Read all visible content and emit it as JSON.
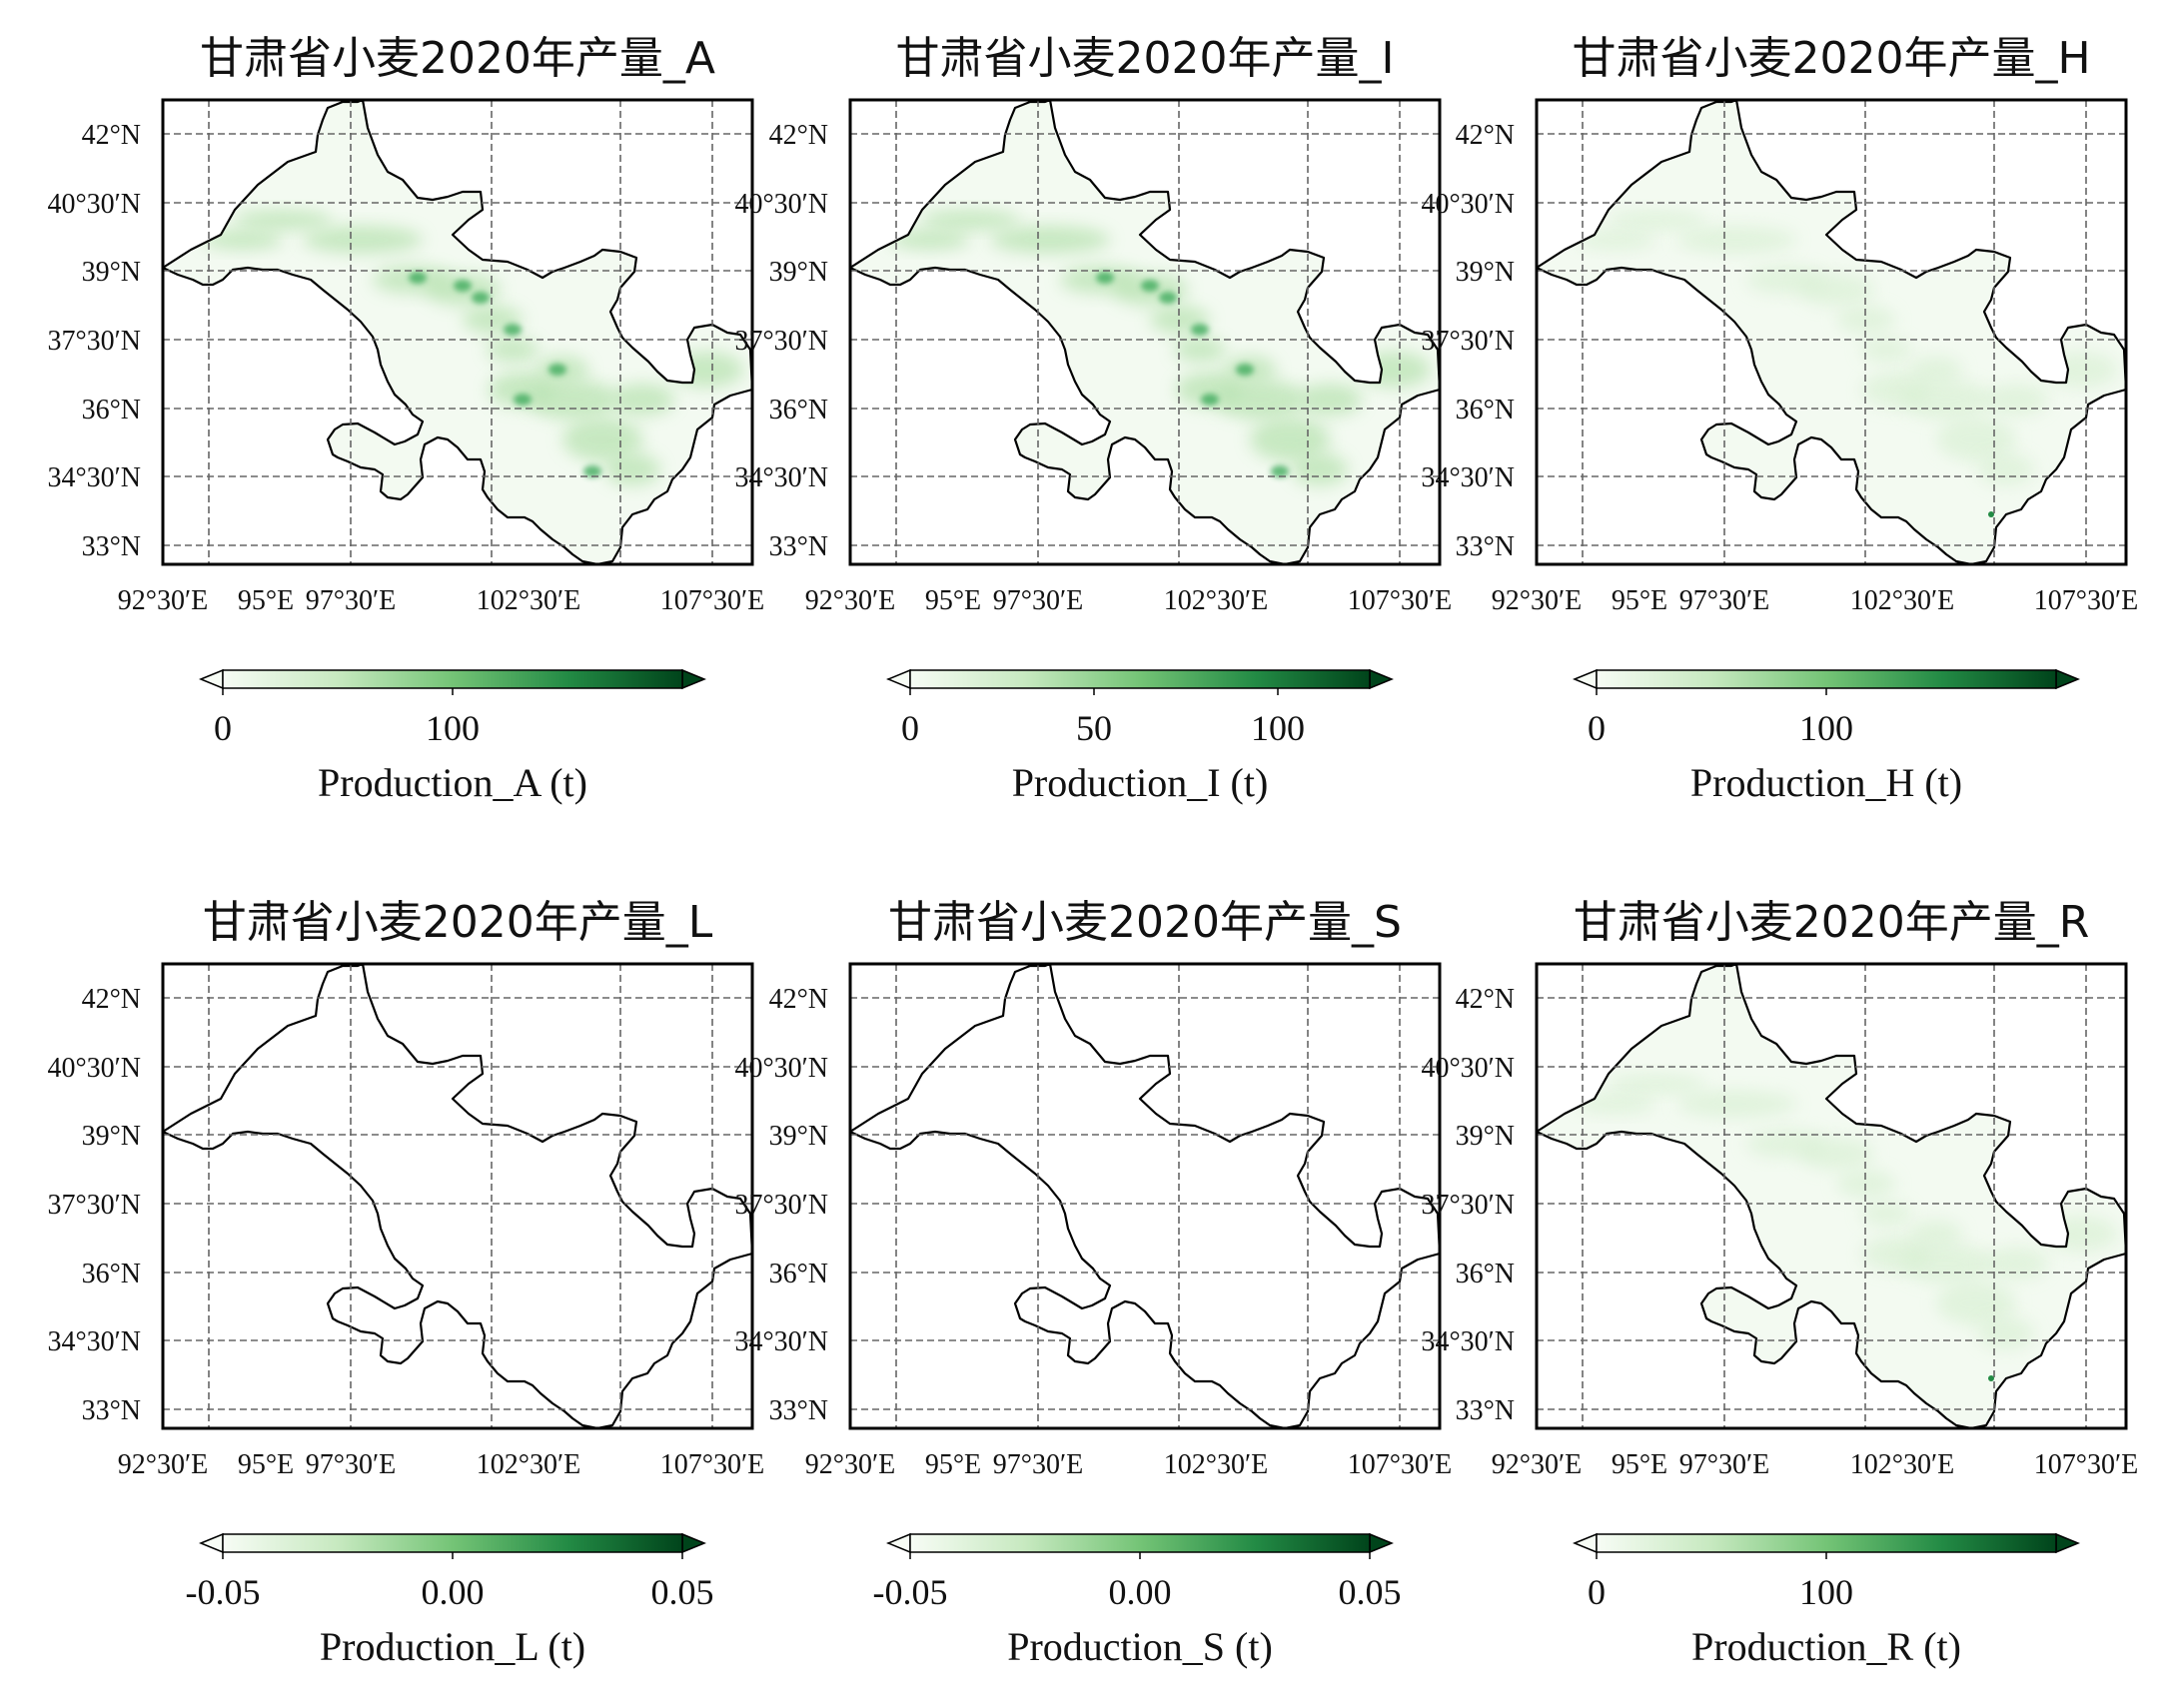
{
  "figure": {
    "panels": [
      {
        "id": "A",
        "title": "甘肃省小麦2020年产量_A",
        "lat_labels": [
          "42°N",
          "40°30′N",
          "39°N",
          "37°30′N",
          "36°N",
          "34°30′N",
          "33°N"
        ],
        "lon_labels": [
          "92°30′E",
          "95°E",
          "97°30′E",
          "102°30′E",
          "107°30′E"
        ],
        "colorbar": {
          "ticks": [
            "0",
            "100"
          ],
          "label": "Production_A (t)",
          "cmap": "Greens",
          "range": [
            0,
            200
          ],
          "extend": "both"
        },
        "shading": "moderate"
      },
      {
        "id": "I",
        "title": "甘肃省小麦2020年产量_I",
        "lat_labels": [
          "42°N",
          "40°30′N",
          "39°N",
          "37°30′N",
          "36°N",
          "34°30′N",
          "33°N"
        ],
        "lon_labels": [
          "92°30′E",
          "95°E",
          "97°30′E",
          "102°30′E",
          "107°30′E"
        ],
        "colorbar": {
          "ticks": [
            "0",
            "50",
            "100"
          ],
          "label": "Production_I (t)",
          "cmap": "Greens",
          "range": [
            0,
            125
          ],
          "extend": "both"
        },
        "shading": "moderate"
      },
      {
        "id": "H",
        "title": "甘肃省小麦2020年产量_H",
        "lat_labels": [
          "42°N",
          "40°30′N",
          "39°N",
          "37°30′N",
          "36°N",
          "34°30′N",
          "33°N"
        ],
        "lon_labels": [
          "92°30′E",
          "95°E",
          "97°30′E",
          "102°30′E",
          "107°30′E"
        ],
        "colorbar": {
          "ticks": [
            "0",
            "100"
          ],
          "label": "Production_H (t)",
          "cmap": "Greens",
          "range": [
            0,
            200
          ],
          "extend": "both"
        },
        "shading": "light"
      },
      {
        "id": "L",
        "title": "甘肃省小麦2020年产量_L",
        "lat_labels": [
          "42°N",
          "40°30′N",
          "39°N",
          "37°30′N",
          "36°N",
          "34°30′N",
          "33°N"
        ],
        "lon_labels": [
          "92°30′E",
          "95°E",
          "97°30′E",
          "102°30′E",
          "107°30′E"
        ],
        "colorbar": {
          "ticks": [
            "-0.05",
            "0.00",
            "0.05"
          ],
          "label": "Production_L (t)",
          "cmap": "Greens",
          "range": [
            -0.05,
            0.05
          ],
          "extend": "both"
        },
        "shading": "none"
      },
      {
        "id": "S",
        "title": "甘肃省小麦2020年产量_S",
        "lat_labels": [
          "42°N",
          "40°30′N",
          "39°N",
          "37°30′N",
          "36°N",
          "34°30′N",
          "33°N"
        ],
        "lon_labels": [
          "92°30′E",
          "95°E",
          "97°30′E",
          "102°30′E",
          "107°30′E"
        ],
        "colorbar": {
          "ticks": [
            "-0.05",
            "0.00",
            "0.05"
          ],
          "label": "Production_S (t)",
          "cmap": "Greens",
          "range": [
            -0.05,
            0.05
          ],
          "extend": "both"
        },
        "shading": "none"
      },
      {
        "id": "R",
        "title": "甘肃省小麦2020年产量_R",
        "lat_labels": [
          "42°N",
          "40°30′N",
          "39°N",
          "37°30′N",
          "36°N",
          "34°30′N",
          "33°N"
        ],
        "lon_labels": [
          "92°30′E",
          "95°E",
          "97°30′E",
          "102°30′E",
          "107°30′E"
        ],
        "colorbar": {
          "ticks": [
            "0",
            "100"
          ],
          "label": "Production_R (t)",
          "cmap": "Greens",
          "range": [
            0,
            200
          ],
          "extend": "both"
        },
        "shading": "light"
      }
    ],
    "colors": {
      "cmap_low": "#f7fcf5",
      "cmap_mid": "#74c476",
      "cmap_high": "#00441b",
      "grid": "#666666",
      "border": "#000000"
    }
  }
}
